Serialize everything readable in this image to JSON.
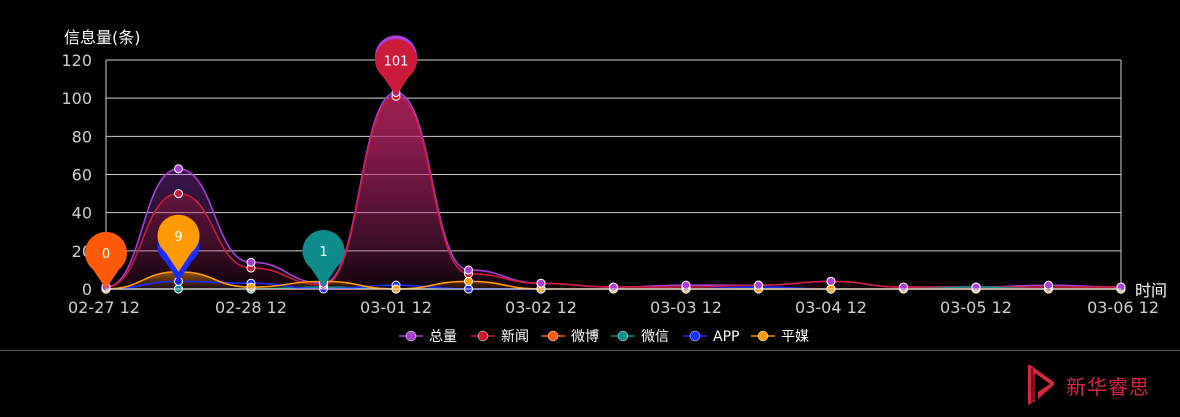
{
  "chart_data": {
    "type": "area",
    "ylabel": "信息量(条)",
    "xlabel": "时间",
    "ylim": [
      0,
      120
    ],
    "yticks": [
      0,
      20,
      40,
      60,
      80,
      100,
      120
    ],
    "xlim": [
      0,
      14
    ],
    "xticks": [
      {
        "x": 0,
        "label": "02-27 12"
      },
      {
        "x": 2,
        "label": "02-28 12"
      },
      {
        "x": 4,
        "label": "03-01 12"
      },
      {
        "x": 6,
        "label": "03-02 12"
      },
      {
        "x": 8,
        "label": "03-03 12"
      },
      {
        "x": 10,
        "label": "03-04 12"
      },
      {
        "x": 12,
        "label": "03-05 12"
      },
      {
        "x": 14,
        "label": "03-06 12"
      }
    ],
    "x": [
      0,
      1,
      2,
      3,
      4,
      5,
      6,
      7,
      8,
      9,
      10,
      11,
      12,
      13,
      14
    ],
    "grid": true,
    "legend_position": "bottom-center",
    "series": [
      {
        "name": "总量",
        "color": "#a83fd6",
        "values": [
          1,
          63,
          14,
          3,
          103,
          10,
          3,
          1,
          2,
          2,
          4,
          1,
          1,
          2,
          1
        ]
      },
      {
        "name": "新闻",
        "color": "#cc1a3a",
        "values": [
          1,
          50,
          11,
          2,
          101,
          8,
          3,
          1,
          1,
          2,
          4,
          1,
          1,
          1,
          1
        ]
      },
      {
        "name": "微博",
        "color": "#ff5a0a",
        "values": [
          0,
          0,
          0,
          0,
          0,
          0,
          0,
          0,
          0,
          0,
          0,
          0,
          0,
          0,
          0
        ]
      },
      {
        "name": "微信",
        "color": "#0f8c8c",
        "values": [
          0,
          0,
          0,
          1,
          0,
          0,
          0,
          0,
          0,
          0,
          0,
          0,
          1,
          0,
          0
        ]
      },
      {
        "name": "APP",
        "color": "#1a2cff",
        "values": [
          0,
          4,
          3,
          0,
          2,
          0,
          0,
          0,
          0,
          1,
          0,
          0,
          0,
          0,
          0
        ]
      },
      {
        "name": "平媒",
        "color": "#ff9a00",
        "values": [
          0,
          9,
          1,
          4,
          0,
          4,
          0,
          0,
          0,
          0,
          0,
          0,
          0,
          0,
          0
        ]
      }
    ],
    "markers": [
      {
        "series": "新闻",
        "x": 4,
        "value": 101
      },
      {
        "series": "总量",
        "x": 4,
        "value": 103
      },
      {
        "series": "微博",
        "x": 0,
        "value": 0
      },
      {
        "series": "平媒",
        "x": 1,
        "value": 9
      },
      {
        "series": "APP",
        "x": 1,
        "value": 4
      },
      {
        "series": "微信",
        "x": 3,
        "value": 1
      }
    ]
  },
  "brand": {
    "name": "新华睿思"
  }
}
